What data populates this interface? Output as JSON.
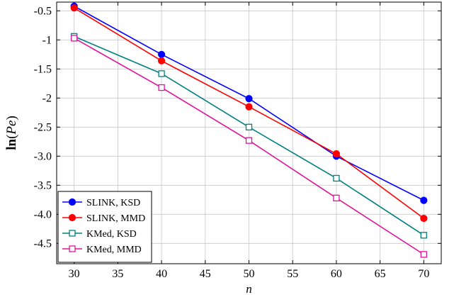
{
  "chart_data": {
    "type": "line",
    "title": "",
    "xlabel": "n",
    "ylabel": "ln(Pe)",
    "ylabel_parts": {
      "prefix": "ln",
      "open": "(",
      "var": "Pe",
      "close": ")"
    },
    "x": [
      30,
      40,
      50,
      60,
      70
    ],
    "xlim": [
      28,
      72
    ],
    "ylim": [
      -4.85,
      -0.35
    ],
    "xticks": [
      30,
      35,
      40,
      45,
      50,
      55,
      60,
      65,
      70
    ],
    "xtick_labels": [
      "30",
      "35",
      "40",
      "45",
      "50",
      "55",
      "60",
      "65",
      "70"
    ],
    "yticks": [
      -0.5,
      -1,
      -1.5,
      -2,
      -2.5,
      -3.0,
      -3.5,
      -4.0,
      -4.5
    ],
    "ytick_labels": [
      "-0.5",
      "-1",
      "-1.5",
      "-2",
      "-2.5",
      "-3.0",
      "-3.5",
      "-4.0",
      "-4.5"
    ],
    "grid": true,
    "legend_position": "bottom-left",
    "series": [
      {
        "name": "SLINK, KSD",
        "color": "#0000ff",
        "marker": "circle",
        "values": [
          -0.42,
          -1.25,
          -2.01,
          -3.0,
          -3.76
        ]
      },
      {
        "name": "SLINK, MMD",
        "color": "#ff0000",
        "marker": "circle",
        "values": [
          -0.45,
          -1.36,
          -2.15,
          -2.96,
          -4.07
        ]
      },
      {
        "name": "KMed, KSD",
        "color": "#008080",
        "marker": "square",
        "values": [
          -0.94,
          -1.58,
          -2.5,
          -3.38,
          -4.36
        ]
      },
      {
        "name": "KMed, MMD",
        "color": "#e0139a",
        "marker": "square",
        "values": [
          -0.97,
          -1.82,
          -2.73,
          -3.72,
          -4.69
        ]
      }
    ]
  }
}
